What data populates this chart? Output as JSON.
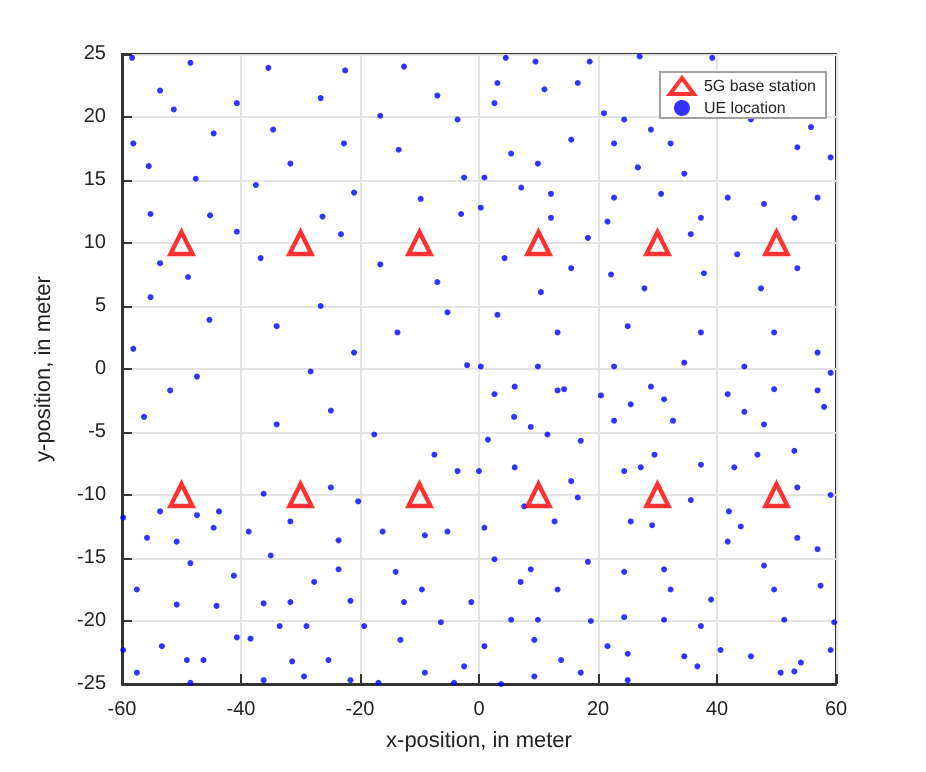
{
  "chart_data": {
    "type": "scatter",
    "xlabel": "x-position, in meter",
    "ylabel": "y-position, in meter",
    "xlim": [
      -60,
      60
    ],
    "xticks": [
      -60,
      -40,
      -20,
      0,
      20,
      40,
      60
    ],
    "ylim": [
      -25,
      25
    ],
    "yticks": [
      -25,
      -20,
      -15,
      -10,
      -5,
      0,
      5,
      10,
      15,
      20,
      25
    ],
    "grid": true,
    "legend": "top right",
    "series": [
      {
        "name": "5G base station",
        "color": "#ff0000",
        "marker": "triangle",
        "x": [
          -50,
          -30,
          -10,
          10,
          30,
          50,
          -50,
          -30,
          -10,
          10,
          30,
          50
        ],
        "values": [
          10,
          10,
          10,
          10,
          10,
          10,
          -10,
          -10,
          -10,
          -10,
          -10,
          -10
        ]
      },
      {
        "name": "UE location",
        "color": "#0000ff",
        "marker": "circle",
        "x": [
          -58.3,
          -48.5,
          -35.4,
          -22.5,
          -12.6,
          -53.6,
          -40.7,
          -26.6,
          -7,
          -51.3,
          -16.6,
          -34.6,
          -3.6,
          -58.1,
          -44.6,
          -31.7,
          -22.7,
          -13.5,
          -55.5,
          -47.6,
          -2.5,
          -37.5,
          -21,
          -9.8,
          -55.2,
          -45.2,
          -26.3,
          -3,
          -40.7,
          -23.2,
          -53.6,
          -36.7,
          -16.6,
          -7,
          -48.9,
          -55.2,
          -26.6,
          -5.3,
          -45.3,
          -34,
          -13.7,
          -58.1,
          -21,
          -47.4,
          -28.3,
          -2,
          4.5,
          9.5,
          18.6,
          27,
          39.2,
          3.1,
          11,
          16.6,
          2.6,
          21,
          24.4,
          28.9,
          45.7,
          55.8,
          15.5,
          22.7,
          32.2,
          53.5,
          5.4,
          9.9,
          26.7,
          34.5,
          59.1,
          0.9,
          7.1,
          12.1,
          22.7,
          30.6,
          41.8,
          47.9,
          56.9,
          0.3,
          12.1,
          21.6,
          37.3,
          53,
          18.3,
          35.6,
          43.4,
          4.3,
          15.5,
          22.2,
          27.8,
          37.8,
          47.4,
          53.5,
          10.4,
          3.1,
          13.2,
          25,
          37.3,
          49.6,
          56.9,
          0.3,
          9.9,
          22.7,
          34.5,
          44.6,
          59.1,
          6,
          14.3,
          28.9,
          49.6,
          -56.3,
          -51.9,
          -34,
          -24.9,
          -17.6,
          -7.5,
          -3.6,
          -59.8,
          -53.6,
          -47.4,
          -43.7,
          -36.2,
          -31.7,
          -24.9,
          -20.3,
          -9.1,
          -55.8,
          -50.8,
          -44.6,
          -38.7,
          -23.6,
          -16.2,
          -5.3,
          -57.5,
          -48.5,
          -41.2,
          -35,
          -27.7,
          -23.6,
          -14,
          -9.6,
          -1.3,
          -50.8,
          -44.1,
          -36.2,
          -31.7,
          -21.6,
          -12.6,
          -59.8,
          -53.3,
          -40.7,
          -33.5,
          -29,
          -19.3,
          -13.2,
          -6.4,
          -49.1,
          -46.3,
          -38.4,
          -31.4,
          -25.3,
          -16.9,
          -9.1,
          -2.5,
          -57.5,
          -48.5,
          -36.2,
          -29.4,
          -21.6,
          -4.2,
          2.6,
          13.2,
          20.5,
          25.5,
          31.1,
          41.8,
          44.6,
          56.9,
          5.9,
          8.7,
          17.1,
          22.7,
          32.6,
          47.9,
          58,
          1.5,
          11.5,
          29.5,
          37.3,
          46.8,
          53,
          0,
          6,
          15.5,
          24.4,
          27.2,
          42.9,
          53.5,
          7.6,
          16.6,
          35.6,
          42,
          59.1,
          0.9,
          12.7,
          25.5,
          29.1,
          44,
          53.5,
          2.6,
          8.7,
          18.3,
          24.4,
          31.1,
          41.8,
          47.9,
          56.9,
          7,
          13.2,
          32.2,
          39,
          49.6,
          57.4,
          5.4,
          9.9,
          18.8,
          24.4,
          31.1,
          37.3,
          51.3,
          59.7,
          0.9,
          9.3,
          13.8,
          21.6,
          25,
          34.5,
          40.6,
          45.7,
          54.1,
          59.1,
          3.7,
          9.3,
          17.1,
          25,
          36.7,
          50.7,
          53
        ],
        "values": [
          24.7,
          24.3,
          23.9,
          23.7,
          24,
          22.1,
          21.1,
          21.5,
          21.7,
          20.6,
          20.1,
          19,
          19.8,
          17.9,
          18.7,
          16.3,
          17.9,
          17.4,
          16.1,
          15.1,
          15.2,
          14.6,
          14,
          13.5,
          12.3,
          12.2,
          12.1,
          12.3,
          10.9,
          10.7,
          8.4,
          8.8,
          8.3,
          6.9,
          7.3,
          5.7,
          5,
          4.5,
          3.9,
          3.4,
          2.9,
          1.6,
          1.3,
          -0.6,
          -0.2,
          0.3,
          24.7,
          24.4,
          24.4,
          24.8,
          24.7,
          22.7,
          22.2,
          22.7,
          21.1,
          20.3,
          19.8,
          19,
          19.8,
          19.2,
          18.2,
          17.9,
          17.9,
          17.6,
          17.1,
          16.3,
          16,
          15.5,
          16.8,
          15.2,
          14.4,
          13.9,
          13.6,
          13.9,
          13.6,
          13.1,
          13.6,
          12.8,
          12,
          11.7,
          12,
          12,
          10.4,
          10.7,
          9.1,
          8.8,
          8,
          7.5,
          6.4,
          7.6,
          6.4,
          8,
          6.1,
          4.3,
          2.9,
          3.4,
          2.9,
          2.9,
          1.3,
          0.2,
          0.2,
          0.2,
          0.5,
          0.2,
          -0.3,
          -1.4,
          -1.6,
          -1.4,
          -1.6,
          -3.8,
          -1.7,
          -4.4,
          -3.3,
          -5.2,
          -6.8,
          -8.1,
          -11.8,
          -11.3,
          -11.6,
          -11.3,
          -9.9,
          -12.1,
          -9.4,
          -10.5,
          -13.2,
          -13.4,
          -13.7,
          -12.6,
          -12.9,
          -13.6,
          -12.9,
          -12.9,
          -17.5,
          -15.4,
          -16.4,
          -14.8,
          -16.9,
          -15.9,
          -16.1,
          -17.5,
          -18.5,
          -18.7,
          -18.8,
          -18.6,
          -18.5,
          -18.4,
          -18.5,
          -22.3,
          -22,
          -21.3,
          -20.4,
          -20.4,
          -20.4,
          -21.5,
          -20.1,
          -23.1,
          -23.1,
          -21.4,
          -23.2,
          -23.1,
          -24.9,
          -24.1,
          -23.6,
          -24.1,
          -24.9,
          -24.7,
          -24.4,
          -24.7,
          -24.9,
          -2,
          -1.7,
          -2.1,
          -2.8,
          -2.4,
          -2,
          -3.4,
          -1.7,
          -3.8,
          -4.6,
          -5.7,
          -4.1,
          -4.1,
          -4.4,
          -3,
          -5.6,
          -5.2,
          -6.8,
          -7.6,
          -6.8,
          -6.5,
          -8.1,
          -7.8,
          -8.9,
          -8.1,
          -7.8,
          -7.8,
          -9.4,
          -10.9,
          -10.2,
          -10.4,
          -11.3,
          -10,
          -12.6,
          -12.1,
          -12.1,
          -12.4,
          -12.5,
          -13.4,
          -15.1,
          -15.9,
          -15.3,
          -16.1,
          -15.9,
          -13.7,
          -15.6,
          -14.3,
          -16.9,
          -17.5,
          -17.5,
          -18.3,
          -17.5,
          -17.2,
          -19.9,
          -19.9,
          -20,
          -19.7,
          -19.9,
          -20.4,
          -19.9,
          -20.1,
          -22,
          -21.5,
          -23.1,
          -22,
          -22.6,
          -22.8,
          -22.3,
          -22.8,
          -23.3,
          -22.3,
          -25,
          -24.4,
          -24.1,
          -24.7,
          -23.6,
          -24.1,
          -24
        ]
      }
    ]
  }
}
